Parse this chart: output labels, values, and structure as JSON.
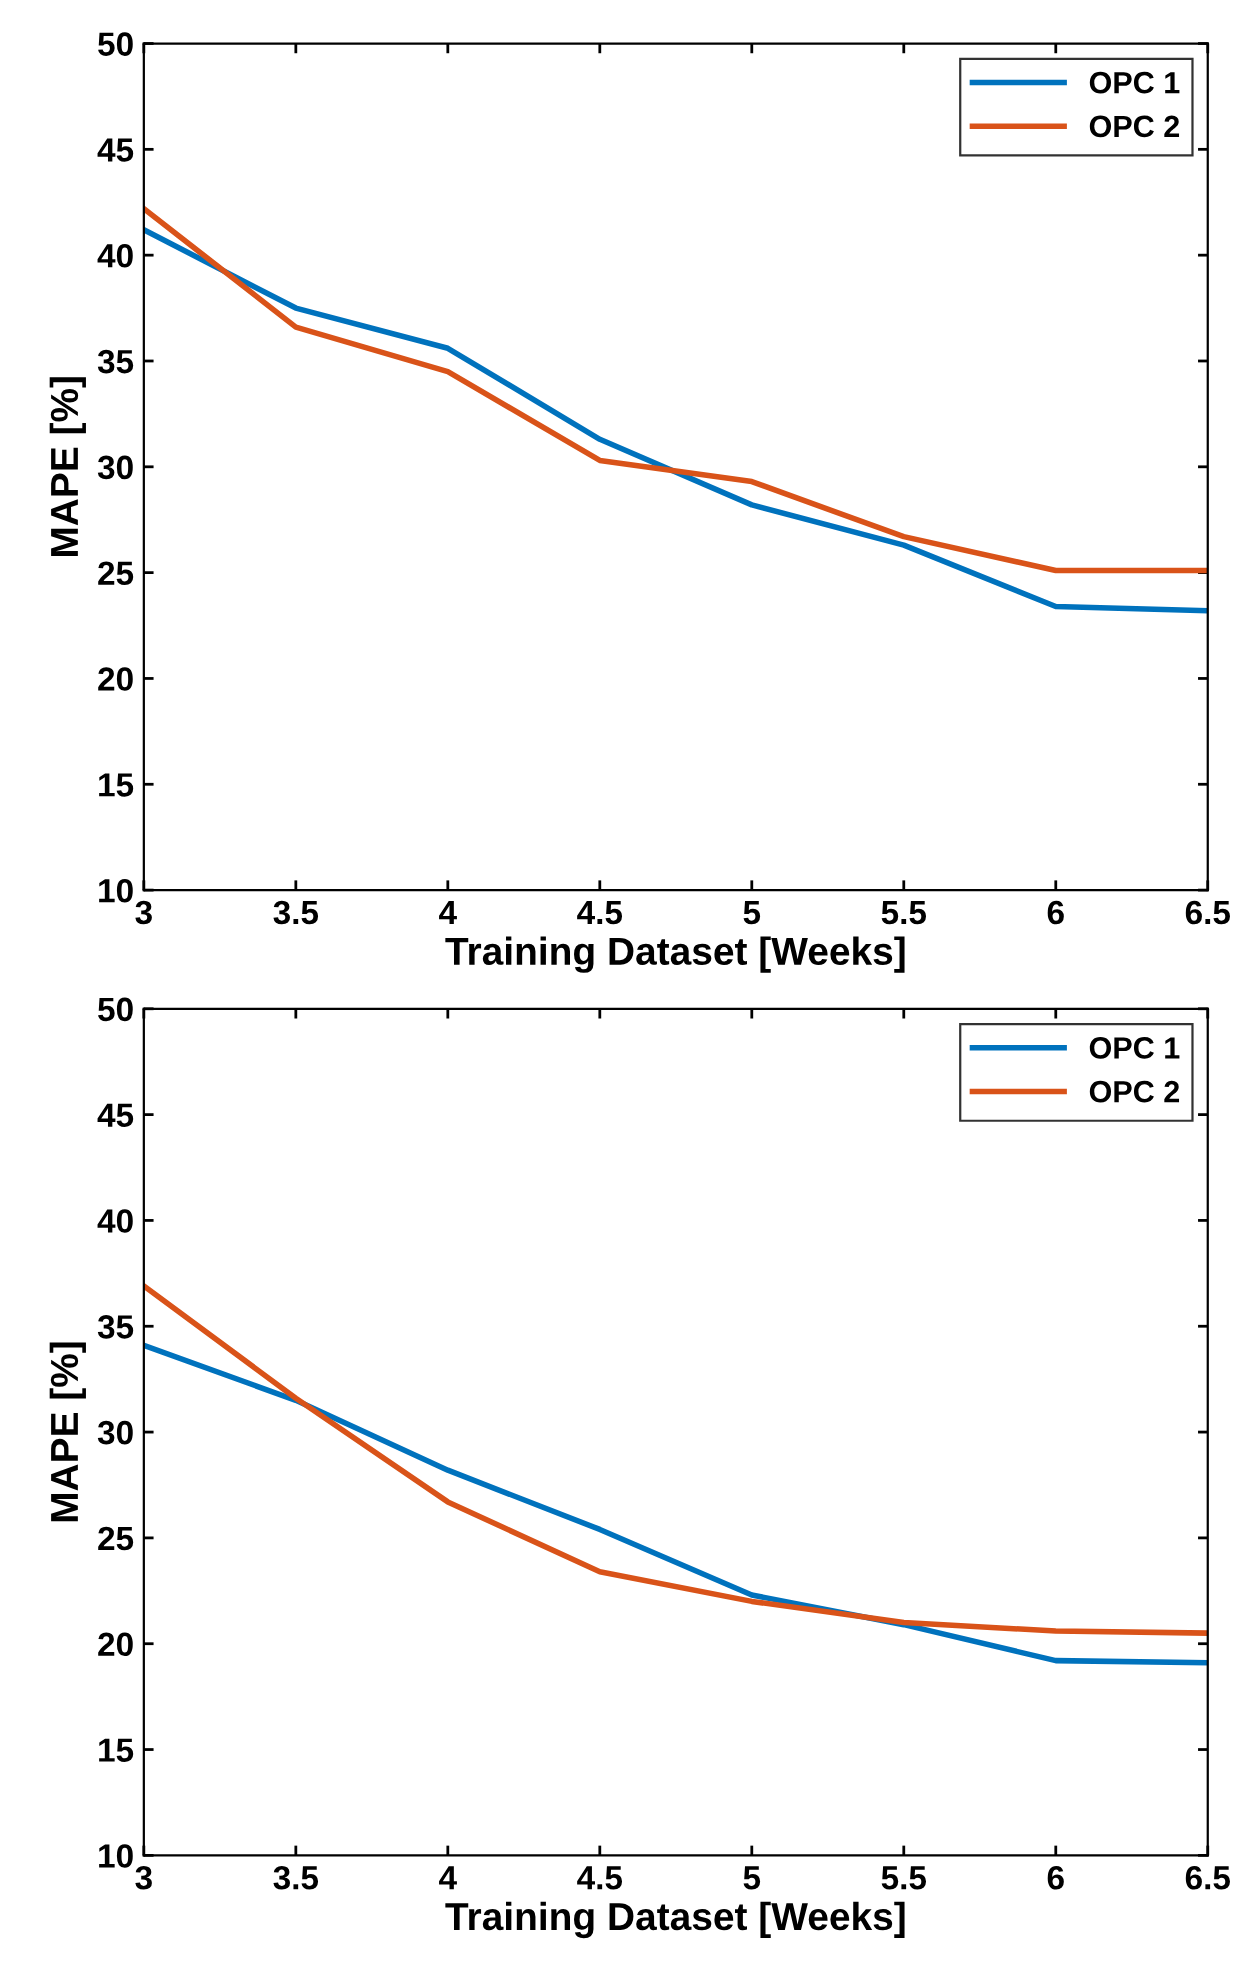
{
  "chart_data": [
    {
      "type": "line",
      "xlabel": "Training Dataset [Weeks]",
      "ylabel": "MAPE [%]",
      "x": [
        3,
        3.5,
        4,
        4.5,
        5,
        5.5,
        6,
        6.5
      ],
      "xlim": [
        3,
        6.5
      ],
      "ylim": [
        10,
        50
      ],
      "xticks": [
        3,
        3.5,
        4,
        4.5,
        5,
        5.5,
        6,
        6.5
      ],
      "yticks": [
        10,
        15,
        20,
        25,
        30,
        35,
        40,
        45,
        50
      ],
      "legend": "top right",
      "grid": false,
      "series": [
        {
          "name": "OPC 1",
          "color": "#0072bd",
          "values": [
            41.2,
            37.5,
            35.6,
            31.3,
            28.2,
            26.3,
            23.4,
            23.2
          ]
        },
        {
          "name": "OPC 2",
          "color": "#d95319",
          "values": [
            42.2,
            36.6,
            34.5,
            30.3,
            29.3,
            26.7,
            25.1,
            25.1
          ]
        }
      ]
    },
    {
      "type": "line",
      "xlabel": "Training Dataset [Weeks]",
      "ylabel": "MAPE [%]",
      "x": [
        3,
        3.5,
        4,
        4.5,
        5,
        5.5,
        6,
        6.5
      ],
      "xlim": [
        3,
        6.5
      ],
      "ylim": [
        10,
        50
      ],
      "xticks": [
        3,
        3.5,
        4,
        4.5,
        5,
        5.5,
        6,
        6.5
      ],
      "yticks": [
        10,
        15,
        20,
        25,
        30,
        35,
        40,
        45,
        50
      ],
      "legend": "top right",
      "grid": false,
      "series": [
        {
          "name": "OPC 1",
          "color": "#0072bd",
          "values": [
            34.1,
            31.5,
            28.2,
            25.4,
            22.3,
            20.9,
            19.2,
            19.1
          ]
        },
        {
          "name": "OPC 2",
          "color": "#d95319",
          "values": [
            36.9,
            31.6,
            26.7,
            23.4,
            22.0,
            21.0,
            20.6,
            20.5
          ]
        }
      ]
    }
  ]
}
